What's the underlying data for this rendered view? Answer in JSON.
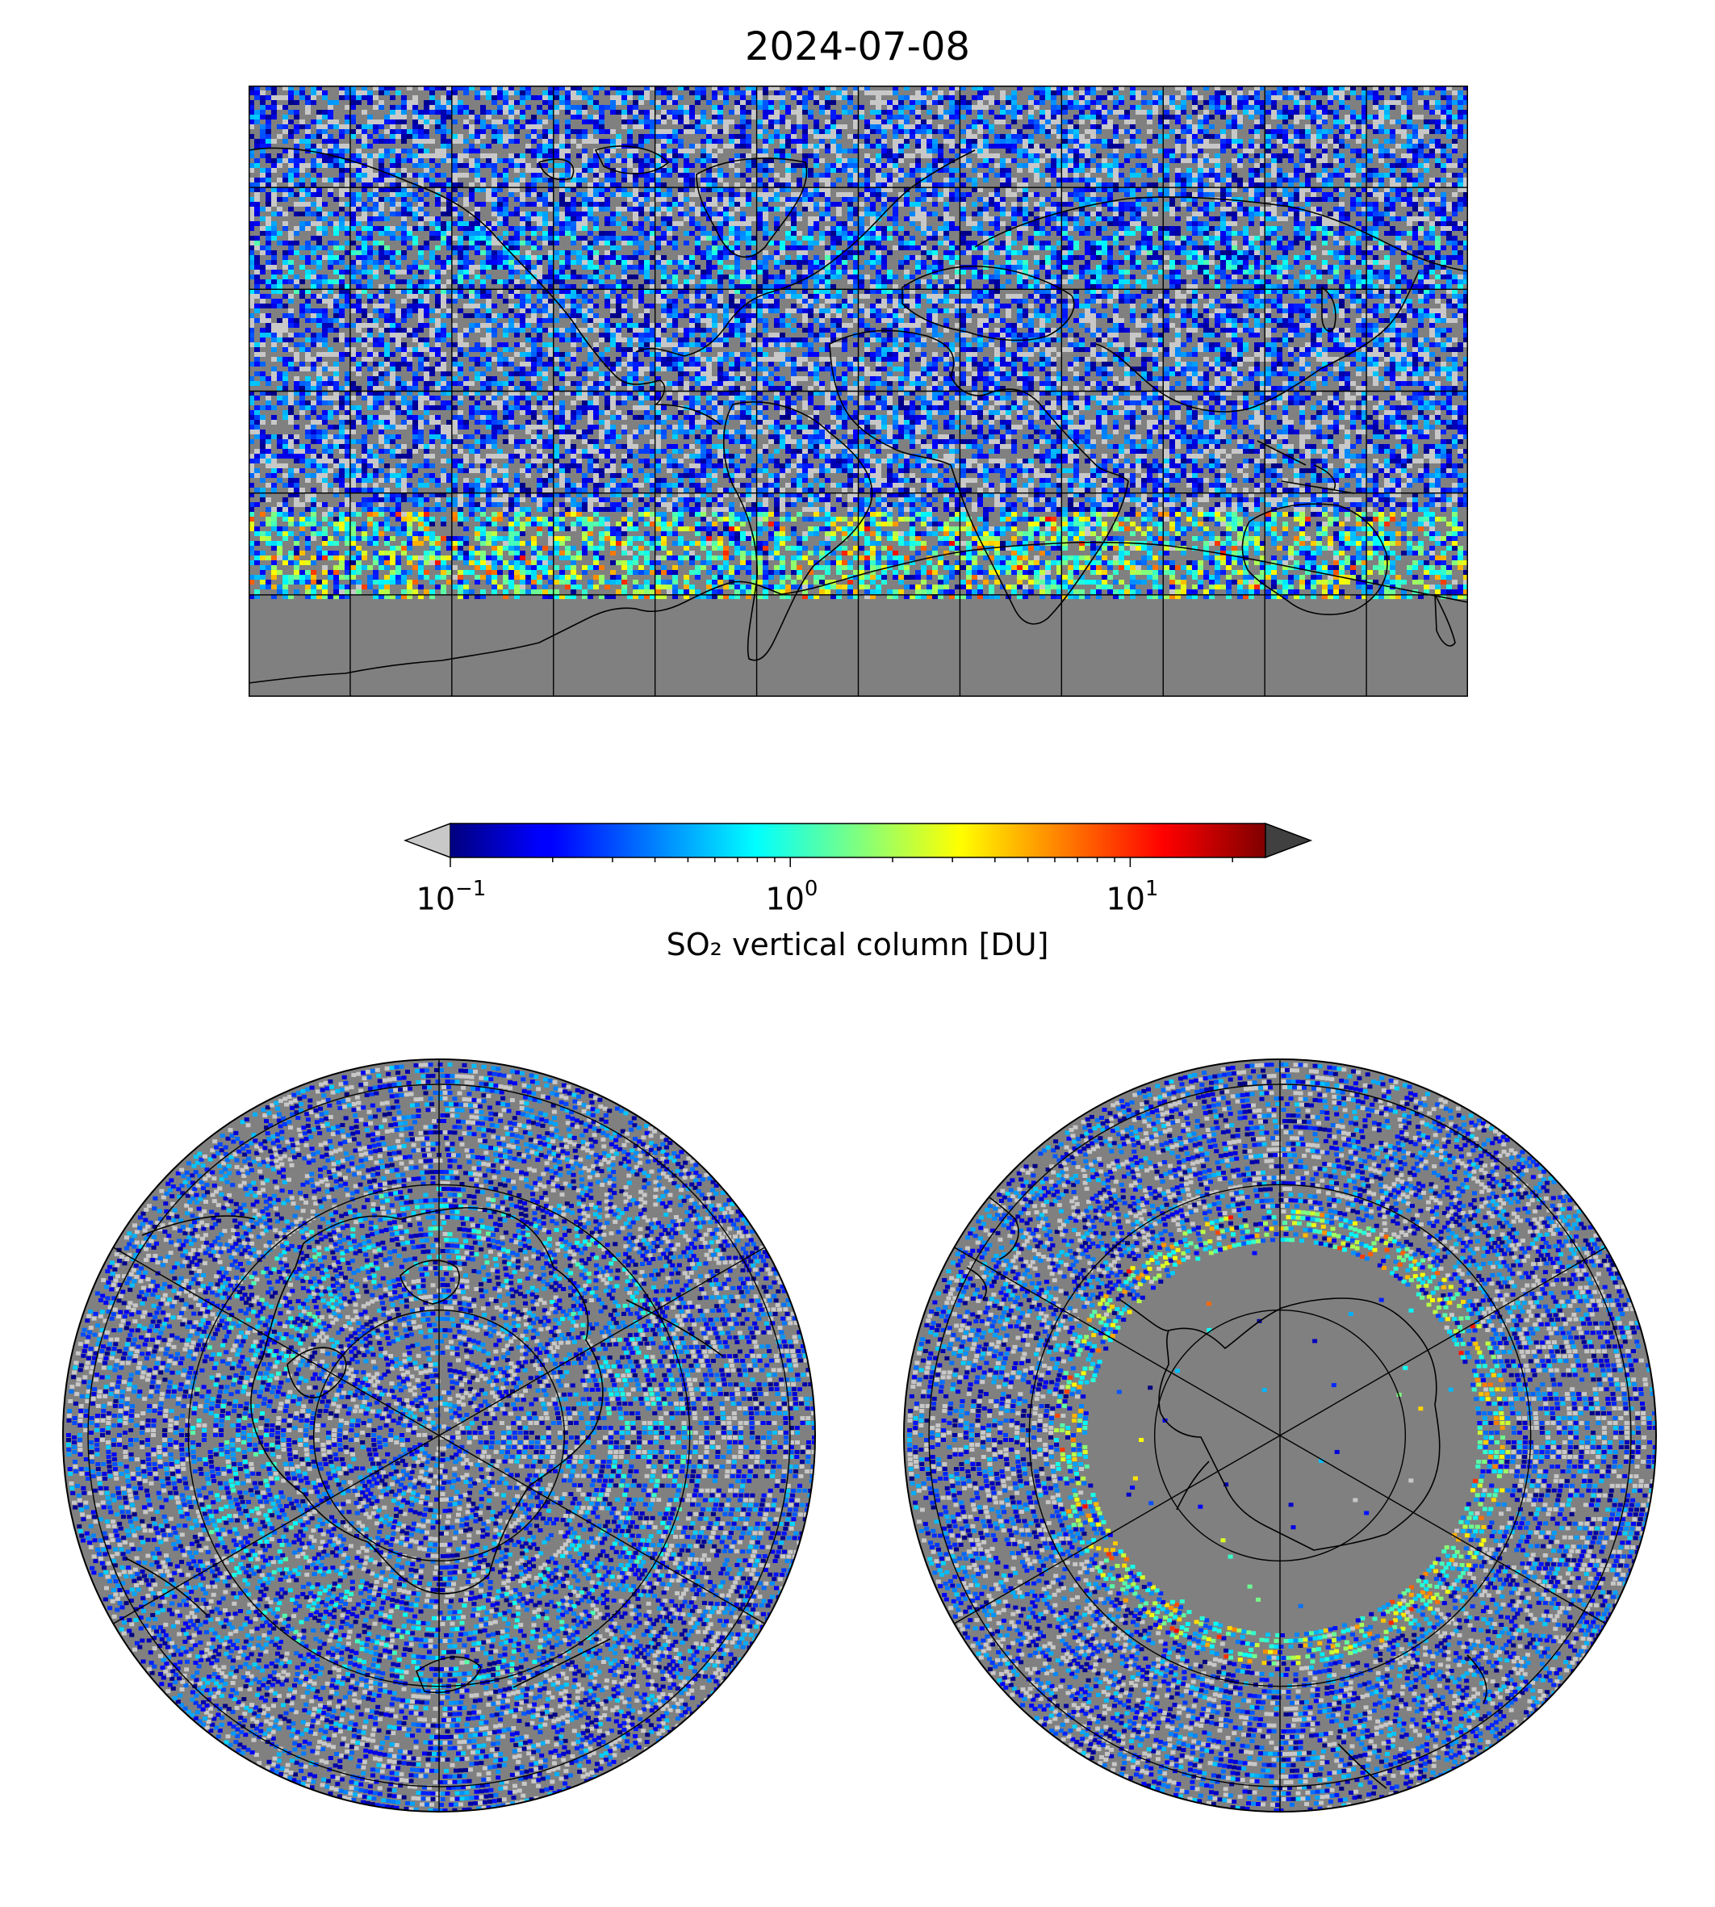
{
  "title": "2024-07-08",
  "colorbar": {
    "label": "SO₂ vertical column [DU]",
    "scale": "log",
    "range": [
      0.1,
      25
    ],
    "ticks": [
      {
        "base": "10",
        "exp": "−1",
        "value": 0.1
      },
      {
        "base": "10",
        "exp": "0",
        "value": 1
      },
      {
        "base": "10",
        "exp": "1",
        "value": 10
      }
    ],
    "under_color": "#c8c8c8",
    "over_color": "#404040",
    "colormap": "jet"
  },
  "colors": {
    "no_data": "#808080",
    "low_value": "#b4b4b4",
    "coastline": "#000000",
    "grid": "#000000"
  },
  "maps": [
    {
      "projection": "plate-carree",
      "extent_lon": [
        -180,
        180
      ],
      "extent_lat": [
        -90,
        90
      ],
      "grid_lon_step": 30,
      "grid_lat_step": 30
    },
    {
      "projection": "north-polar-stereographic",
      "lat_min": 0,
      "rings_lat": [
        60,
        30,
        0
      ]
    },
    {
      "projection": "south-polar-stereographic",
      "lat_max": 0,
      "rings_lat": [
        -60,
        -30,
        0
      ]
    }
  ]
}
